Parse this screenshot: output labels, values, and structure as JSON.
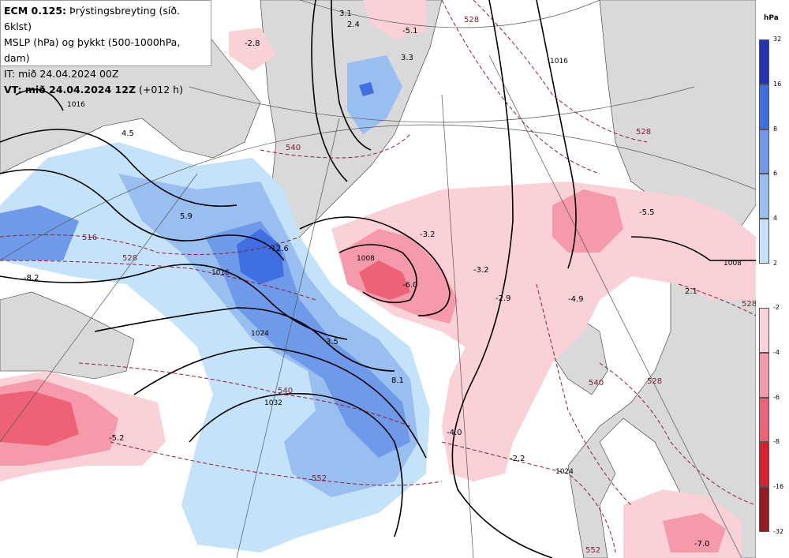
{
  "header": {
    "model_label": "ECM 0.125:",
    "product": "Þrýstingsbreyting (síð. 6klst)",
    "fields": "MSLP (hPa) og þykkt (500-1000hPa, dam)",
    "init_time": "IT: mið 24.04.2024 00Z",
    "valid_time": "VT: mið 24.04.2024 12Z",
    "lead_time": "(+012 h)"
  },
  "legend": {
    "unit": "hPa",
    "rise_colors": [
      "#2432b8",
      "#3f6fe0",
      "#6f9ae9",
      "#99bff1",
      "#c4e3fa"
    ],
    "rise_labels": [
      "32",
      "16",
      "8",
      "6",
      "4",
      "2"
    ],
    "fall_colors": [
      "#fbd1d8",
      "#f59aaa",
      "#ee6277",
      "#dd1e2f",
      "#9a1a22"
    ],
    "fall_labels": [
      "-2",
      "-4",
      "-6",
      "-8",
      "-16",
      "-32"
    ]
  },
  "pressure_labels": [
    "1016",
    "1008",
    "1016",
    "1024",
    "1032",
    "1024",
    "1008",
    "1016"
  ],
  "thickness_labels": [
    "528",
    "540",
    "516",
    "528",
    "540",
    "552",
    "540",
    "528",
    "528",
    "552",
    "528"
  ],
  "change_labels": [
    "3.1",
    "2.4",
    "-5.1",
    "3.3",
    "-2.8",
    "4.5",
    "5.9",
    "-12.6",
    "-8.2",
    "3.5",
    "8.1",
    "-5.2",
    "-3.2",
    "-6.0",
    "-3.2",
    "-2.9",
    "-4.9",
    "-5.5",
    "2.1",
    "-4.0",
    "-2.2",
    "-7.0"
  ]
}
